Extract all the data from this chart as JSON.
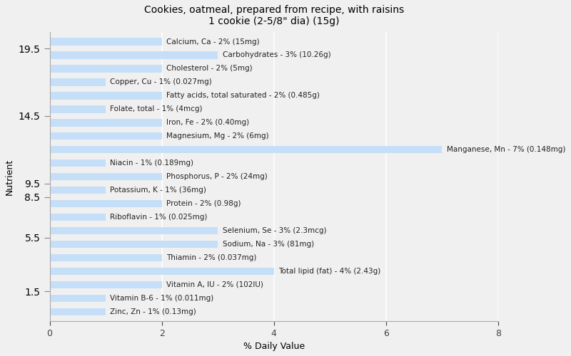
{
  "title": "Cookies, oatmeal, prepared from recipe, with raisins\n1 cookie (2-5/8\" dia) (15g)",
  "xlabel": "% Daily Value",
  "ylabel": "Nutrient",
  "xlim": [
    0,
    8
  ],
  "xticks": [
    0,
    2,
    4,
    6,
    8
  ],
  "background_color": "#f0f0f0",
  "plot_bg_color": "#f0f0f0",
  "bar_color": "#c5dff8",
  "grid_color": "#ffffff",
  "nutrients": [
    {
      "label": "Calcium, Ca - 2% (15mg)",
      "value": 2
    },
    {
      "label": "Carbohydrates - 3% (10.26g)",
      "value": 3
    },
    {
      "label": "Cholesterol - 2% (5mg)",
      "value": 2
    },
    {
      "label": "Copper, Cu - 1% (0.027mg)",
      "value": 1
    },
    {
      "label": "Fatty acids, total saturated - 2% (0.485g)",
      "value": 2
    },
    {
      "label": "Folate, total - 1% (4mcg)",
      "value": 1
    },
    {
      "label": "Iron, Fe - 2% (0.40mg)",
      "value": 2
    },
    {
      "label": "Magnesium, Mg - 2% (6mg)",
      "value": 2
    },
    {
      "label": "Manganese, Mn - 7% (0.148mg)",
      "value": 7
    },
    {
      "label": "Niacin - 1% (0.189mg)",
      "value": 1
    },
    {
      "label": "Phosphorus, P - 2% (24mg)",
      "value": 2
    },
    {
      "label": "Potassium, K - 1% (36mg)",
      "value": 1
    },
    {
      "label": "Protein - 2% (0.98g)",
      "value": 2
    },
    {
      "label": "Riboflavin - 1% (0.025mg)",
      "value": 1
    },
    {
      "label": "Selenium, Se - 3% (2.3mcg)",
      "value": 3
    },
    {
      "label": "Sodium, Na - 3% (81mg)",
      "value": 3
    },
    {
      "label": "Thiamin - 2% (0.037mg)",
      "value": 2
    },
    {
      "label": "Total lipid (fat) - 4% (2.43g)",
      "value": 4
    },
    {
      "label": "Vitamin A, IU - 2% (102IU)",
      "value": 2
    },
    {
      "label": "Vitamin B-6 - 1% (0.011mg)",
      "value": 1
    },
    {
      "label": "Zinc, Zn - 1% (0.13mg)",
      "value": 1
    }
  ],
  "label_fontsize": 7.5,
  "title_fontsize": 10,
  "axis_fontsize": 9,
  "tick_fontsize": 9
}
